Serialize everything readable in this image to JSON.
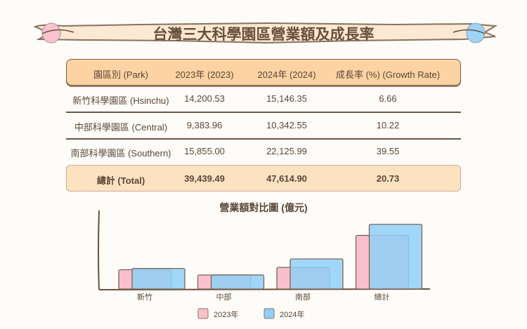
{
  "title": "台灣三大科學園區營業額及成長率",
  "table": {
    "headers": [
      "園區別 (Park)",
      "2023年 (2023)",
      "2024年 (2024)",
      "成長率 (%) (Growth Rate)"
    ],
    "rows": [
      [
        "新竹科學園區 (Hsinchu)",
        "14,200.53",
        "15,146.35",
        "6.66"
      ],
      [
        "中部科學園區 (Central)",
        "9,383.96",
        "10,342.55",
        "10.22"
      ],
      [
        "南部科學園區 (Southern)",
        "15,855.00",
        "22,125.99",
        "39.55"
      ]
    ],
    "total": [
      "總計 (Total)",
      "39,439.49",
      "47,614.90",
      "20.73"
    ]
  },
  "colors": {
    "series_2023": "#f9c0cb",
    "series_2024": "#8fd0f8",
    "header_fill": "#fdd3a3",
    "text": "#5a4636"
  },
  "chart_data": {
    "type": "bar",
    "title": "營業額對比圖 (億元)",
    "categories": [
      "新竹",
      "中部",
      "南部",
      "總計"
    ],
    "series": [
      {
        "name": "2023年",
        "values": [
          14200.53,
          9383.96,
          15855.0,
          39439.49
        ]
      },
      {
        "name": "2024年",
        "values": [
          15146.35,
          10342.55,
          22125.99,
          47614.9
        ]
      }
    ],
    "grid": false,
    "legend": "bottom"
  }
}
